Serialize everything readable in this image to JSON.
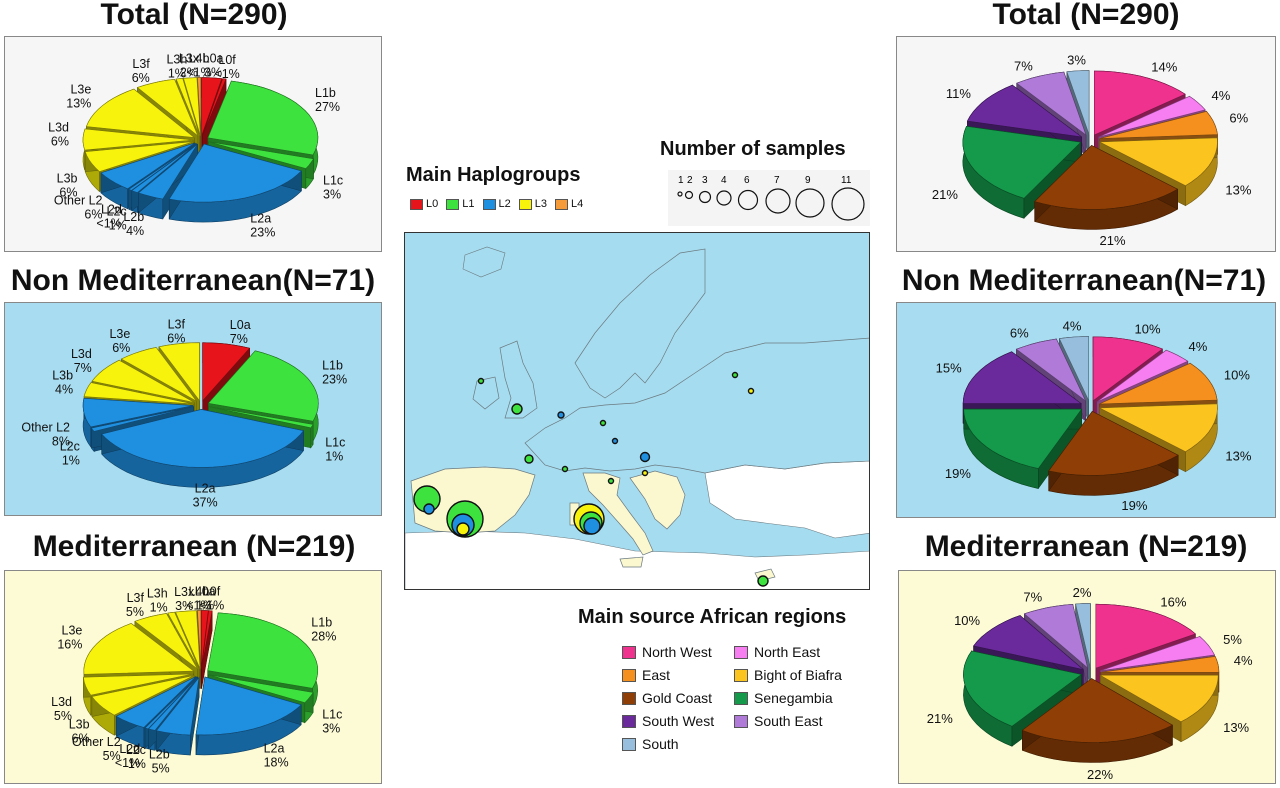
{
  "titles": {
    "left_total": "Total (N=290)",
    "left_nonmed": "Non Mediterranean(N=71)",
    "left_med": "Mediterranean (N=219)",
    "right_total": "Total (N=290)",
    "right_nonmed": "Non Mediterranean(N=71)",
    "right_med": "Mediterranean (N=219)"
  },
  "haplogroup_legend": {
    "title": "Main Haplogroups",
    "items": [
      {
        "label": "L0",
        "color": "#e8141b"
      },
      {
        "label": "L1",
        "color": "#3ee23e"
      },
      {
        "label": "L2",
        "color": "#1f8fe0"
      },
      {
        "label": "L3",
        "color": "#f7f30c"
      },
      {
        "label": "L4",
        "color": "#f59b3a"
      }
    ]
  },
  "samples_legend": {
    "title": "Number of samples",
    "sizes": [
      "1",
      "2",
      "3",
      "4",
      "6",
      "7",
      "9",
      "11"
    ]
  },
  "region_legend": {
    "title": "Main source African regions",
    "items": [
      {
        "label": "North West",
        "color": "#f0328f"
      },
      {
        "label": "North East",
        "color": "#f77ef0"
      },
      {
        "label": "East",
        "color": "#f5901e"
      },
      {
        "label": "Bight of Biafra",
        "color": "#fcc41e"
      },
      {
        "label": "Gold Coast",
        "color": "#8f3f06"
      },
      {
        "label": "Senegambia",
        "color": "#149a4a"
      },
      {
        "label": "South West",
        "color": "#6a2a9c"
      },
      {
        "label": "South East",
        "color": "#b07ad8"
      },
      {
        "label": "South",
        "color": "#98bede"
      }
    ]
  },
  "chart_data": [
    {
      "type": "pie",
      "title": "Total (N=290)",
      "panel": "left-top",
      "slices": [
        {
          "name": "L0a",
          "label": "3%",
          "value": 3,
          "color": "#e8141b"
        },
        {
          "name": "L0f",
          "label": "<1%",
          "value": 0.5,
          "color": "#e8141b"
        },
        {
          "name": "L1b",
          "label": "27%",
          "value": 27,
          "color": "#3ee23e"
        },
        {
          "name": "L1c",
          "label": "3%",
          "value": 3,
          "color": "#3ee23e"
        },
        {
          "name": "L2a",
          "label": "23%",
          "value": 23,
          "color": "#1f8fe0"
        },
        {
          "name": "L2b",
          "label": "4%",
          "value": 4,
          "color": "#1f8fe0"
        },
        {
          "name": "L2c",
          "label": "1%",
          "value": 1,
          "color": "#1f8fe0"
        },
        {
          "name": "L2d",
          "label": "<1%",
          "value": 0.5,
          "color": "#1f8fe0"
        },
        {
          "name": "Other L2",
          "label": "6%",
          "value": 6,
          "color": "#1f8fe0"
        },
        {
          "name": "L3b",
          "label": "6%",
          "value": 6,
          "color": "#f7f30c"
        },
        {
          "name": "L3d",
          "label": "6%",
          "value": 6,
          "color": "#f7f30c"
        },
        {
          "name": "L3e",
          "label": "13%",
          "value": 13,
          "color": "#f7f30c"
        },
        {
          "name": "L3f",
          "label": "6%",
          "value": 6,
          "color": "#f7f30c"
        },
        {
          "name": "L3h",
          "label": "1%",
          "value": 1,
          "color": "#f7f30c"
        },
        {
          "name": "L3x",
          "label": "2%",
          "value": 2,
          "color": "#f7f30c"
        },
        {
          "name": "L4b",
          "label": "<1%",
          "value": 0.5,
          "color": "#f59b3a"
        }
      ]
    },
    {
      "type": "pie",
      "title": "Non Mediterranean(N=71)",
      "panel": "left-middle",
      "slices": [
        {
          "name": "L0a",
          "label": "7%",
          "value": 7,
          "color": "#e8141b"
        },
        {
          "name": "L1b",
          "label": "23%",
          "value": 23,
          "color": "#3ee23e"
        },
        {
          "name": "L1c",
          "label": "1%",
          "value": 1,
          "color": "#3ee23e"
        },
        {
          "name": "L2a",
          "label": "37%",
          "value": 37,
          "color": "#1f8fe0"
        },
        {
          "name": "L2c",
          "label": "1%",
          "value": 1,
          "color": "#1f8fe0"
        },
        {
          "name": "Other L2",
          "label": "8%",
          "value": 8,
          "color": "#1f8fe0"
        },
        {
          "name": "L3b",
          "label": "4%",
          "value": 4,
          "color": "#f7f30c"
        },
        {
          "name": "L3d",
          "label": "7%",
          "value": 7,
          "color": "#f7f30c"
        },
        {
          "name": "L3e",
          "label": "6%",
          "value": 6,
          "color": "#f7f30c"
        },
        {
          "name": "L3f",
          "label": "6%",
          "value": 6,
          "color": "#f7f30c"
        }
      ]
    },
    {
      "type": "pie",
      "title": "Mediterranean (N=219)",
      "panel": "left-bottom",
      "slices": [
        {
          "name": "L0a",
          "label": "1%",
          "value": 1,
          "color": "#e8141b"
        },
        {
          "name": "L0f",
          "label": "<1%",
          "value": 0.5,
          "color": "#e8141b"
        },
        {
          "name": "L1b",
          "label": "28%",
          "value": 28,
          "color": "#3ee23e"
        },
        {
          "name": "L1c",
          "label": "3%",
          "value": 3,
          "color": "#3ee23e"
        },
        {
          "name": "L2a",
          "label": "18%",
          "value": 18,
          "color": "#1f8fe0"
        },
        {
          "name": "L2b",
          "label": "5%",
          "value": 5,
          "color": "#1f8fe0"
        },
        {
          "name": "L2c",
          "label": "1%",
          "value": 1,
          "color": "#1f8fe0"
        },
        {
          "name": "L2d",
          "label": "<1%",
          "value": 0.5,
          "color": "#1f8fe0"
        },
        {
          "name": "Other L2",
          "label": "5%",
          "value": 5,
          "color": "#1f8fe0"
        },
        {
          "name": "L3b",
          "label": "6%",
          "value": 6,
          "color": "#f7f30c"
        },
        {
          "name": "L3d",
          "label": "5%",
          "value": 5,
          "color": "#f7f30c"
        },
        {
          "name": "L3e",
          "label": "16%",
          "value": 16,
          "color": "#f7f30c"
        },
        {
          "name": "L3f",
          "label": "5%",
          "value": 5,
          "color": "#f7f30c"
        },
        {
          "name": "L3h",
          "label": "1%",
          "value": 1,
          "color": "#f7f30c"
        },
        {
          "name": "L3x",
          "label": "3%",
          "value": 3,
          "color": "#f7f30c"
        },
        {
          "name": "L4b",
          "label": "<1%",
          "value": 0.5,
          "color": "#f59b3a"
        }
      ]
    },
    {
      "type": "pie",
      "title": "Total (N=290)",
      "panel": "right-top",
      "slices": [
        {
          "name": "North West",
          "label": "14%",
          "value": 14,
          "color": "#f0328f"
        },
        {
          "name": "North East",
          "label": "4%",
          "value": 4,
          "color": "#f77ef0"
        },
        {
          "name": "East",
          "label": "6%",
          "value": 6,
          "color": "#f5901e"
        },
        {
          "name": "Bight of Biafra",
          "label": "13%",
          "value": 13,
          "color": "#fcc41e"
        },
        {
          "name": "Gold Coast",
          "label": "21%",
          "value": 21,
          "color": "#8f3f06"
        },
        {
          "name": "Senegambia",
          "label": "21%",
          "value": 21,
          "color": "#149a4a"
        },
        {
          "name": "South West",
          "label": "11%",
          "value": 11,
          "color": "#6a2a9c"
        },
        {
          "name": "South East",
          "label": "7%",
          "value": 7,
          "color": "#b07ad8"
        },
        {
          "name": "South",
          "label": "3%",
          "value": 3,
          "color": "#98bede"
        }
      ]
    },
    {
      "type": "pie",
      "title": "Non Mediterranean(N=71)",
      "panel": "right-middle",
      "slices": [
        {
          "name": "North West",
          "label": "10%",
          "value": 10,
          "color": "#f0328f"
        },
        {
          "name": "North East",
          "label": "4%",
          "value": 4,
          "color": "#f77ef0"
        },
        {
          "name": "East",
          "label": "10%",
          "value": 10,
          "color": "#f5901e"
        },
        {
          "name": "Bight of Biafra",
          "label": "13%",
          "value": 13,
          "color": "#fcc41e"
        },
        {
          "name": "Gold Coast",
          "label": "19%",
          "value": 19,
          "color": "#8f3f06"
        },
        {
          "name": "Senegambia",
          "label": "19%",
          "value": 19,
          "color": "#149a4a"
        },
        {
          "name": "South West",
          "label": "15%",
          "value": 15,
          "color": "#6a2a9c"
        },
        {
          "name": "South East",
          "label": "6%",
          "value": 6,
          "color": "#b07ad8"
        },
        {
          "name": "South",
          "label": "4%",
          "value": 4,
          "color": "#98bede"
        }
      ]
    },
    {
      "type": "pie",
      "title": "Mediterranean (N=219)",
      "panel": "right-bottom",
      "slices": [
        {
          "name": "North West",
          "label": "16%",
          "value": 16,
          "color": "#f0328f"
        },
        {
          "name": "North East",
          "label": "5%",
          "value": 5,
          "color": "#f77ef0"
        },
        {
          "name": "East",
          "label": "4%",
          "value": 4,
          "color": "#f5901e"
        },
        {
          "name": "Bight of Biafra",
          "label": "13%",
          "value": 13,
          "color": "#fcc41e"
        },
        {
          "name": "Gold Coast",
          "label": "22%",
          "value": 22,
          "color": "#8f3f06"
        },
        {
          "name": "Senegambia",
          "label": "21%",
          "value": 21,
          "color": "#149a4a"
        },
        {
          "name": "South West",
          "label": "10%",
          "value": 10,
          "color": "#6a2a9c"
        },
        {
          "name": "South East",
          "label": "7%",
          "value": 7,
          "color": "#b07ad8"
        },
        {
          "name": "South",
          "label": "2%",
          "value": 2,
          "color": "#98bede"
        }
      ]
    }
  ],
  "map": {
    "colors": {
      "sea": "#a6dcef",
      "study_region": "#a6dcef",
      "mediterranean_region": "#fbf7cf",
      "other_land": "#ffffff",
      "border": "#6a7a80"
    }
  }
}
